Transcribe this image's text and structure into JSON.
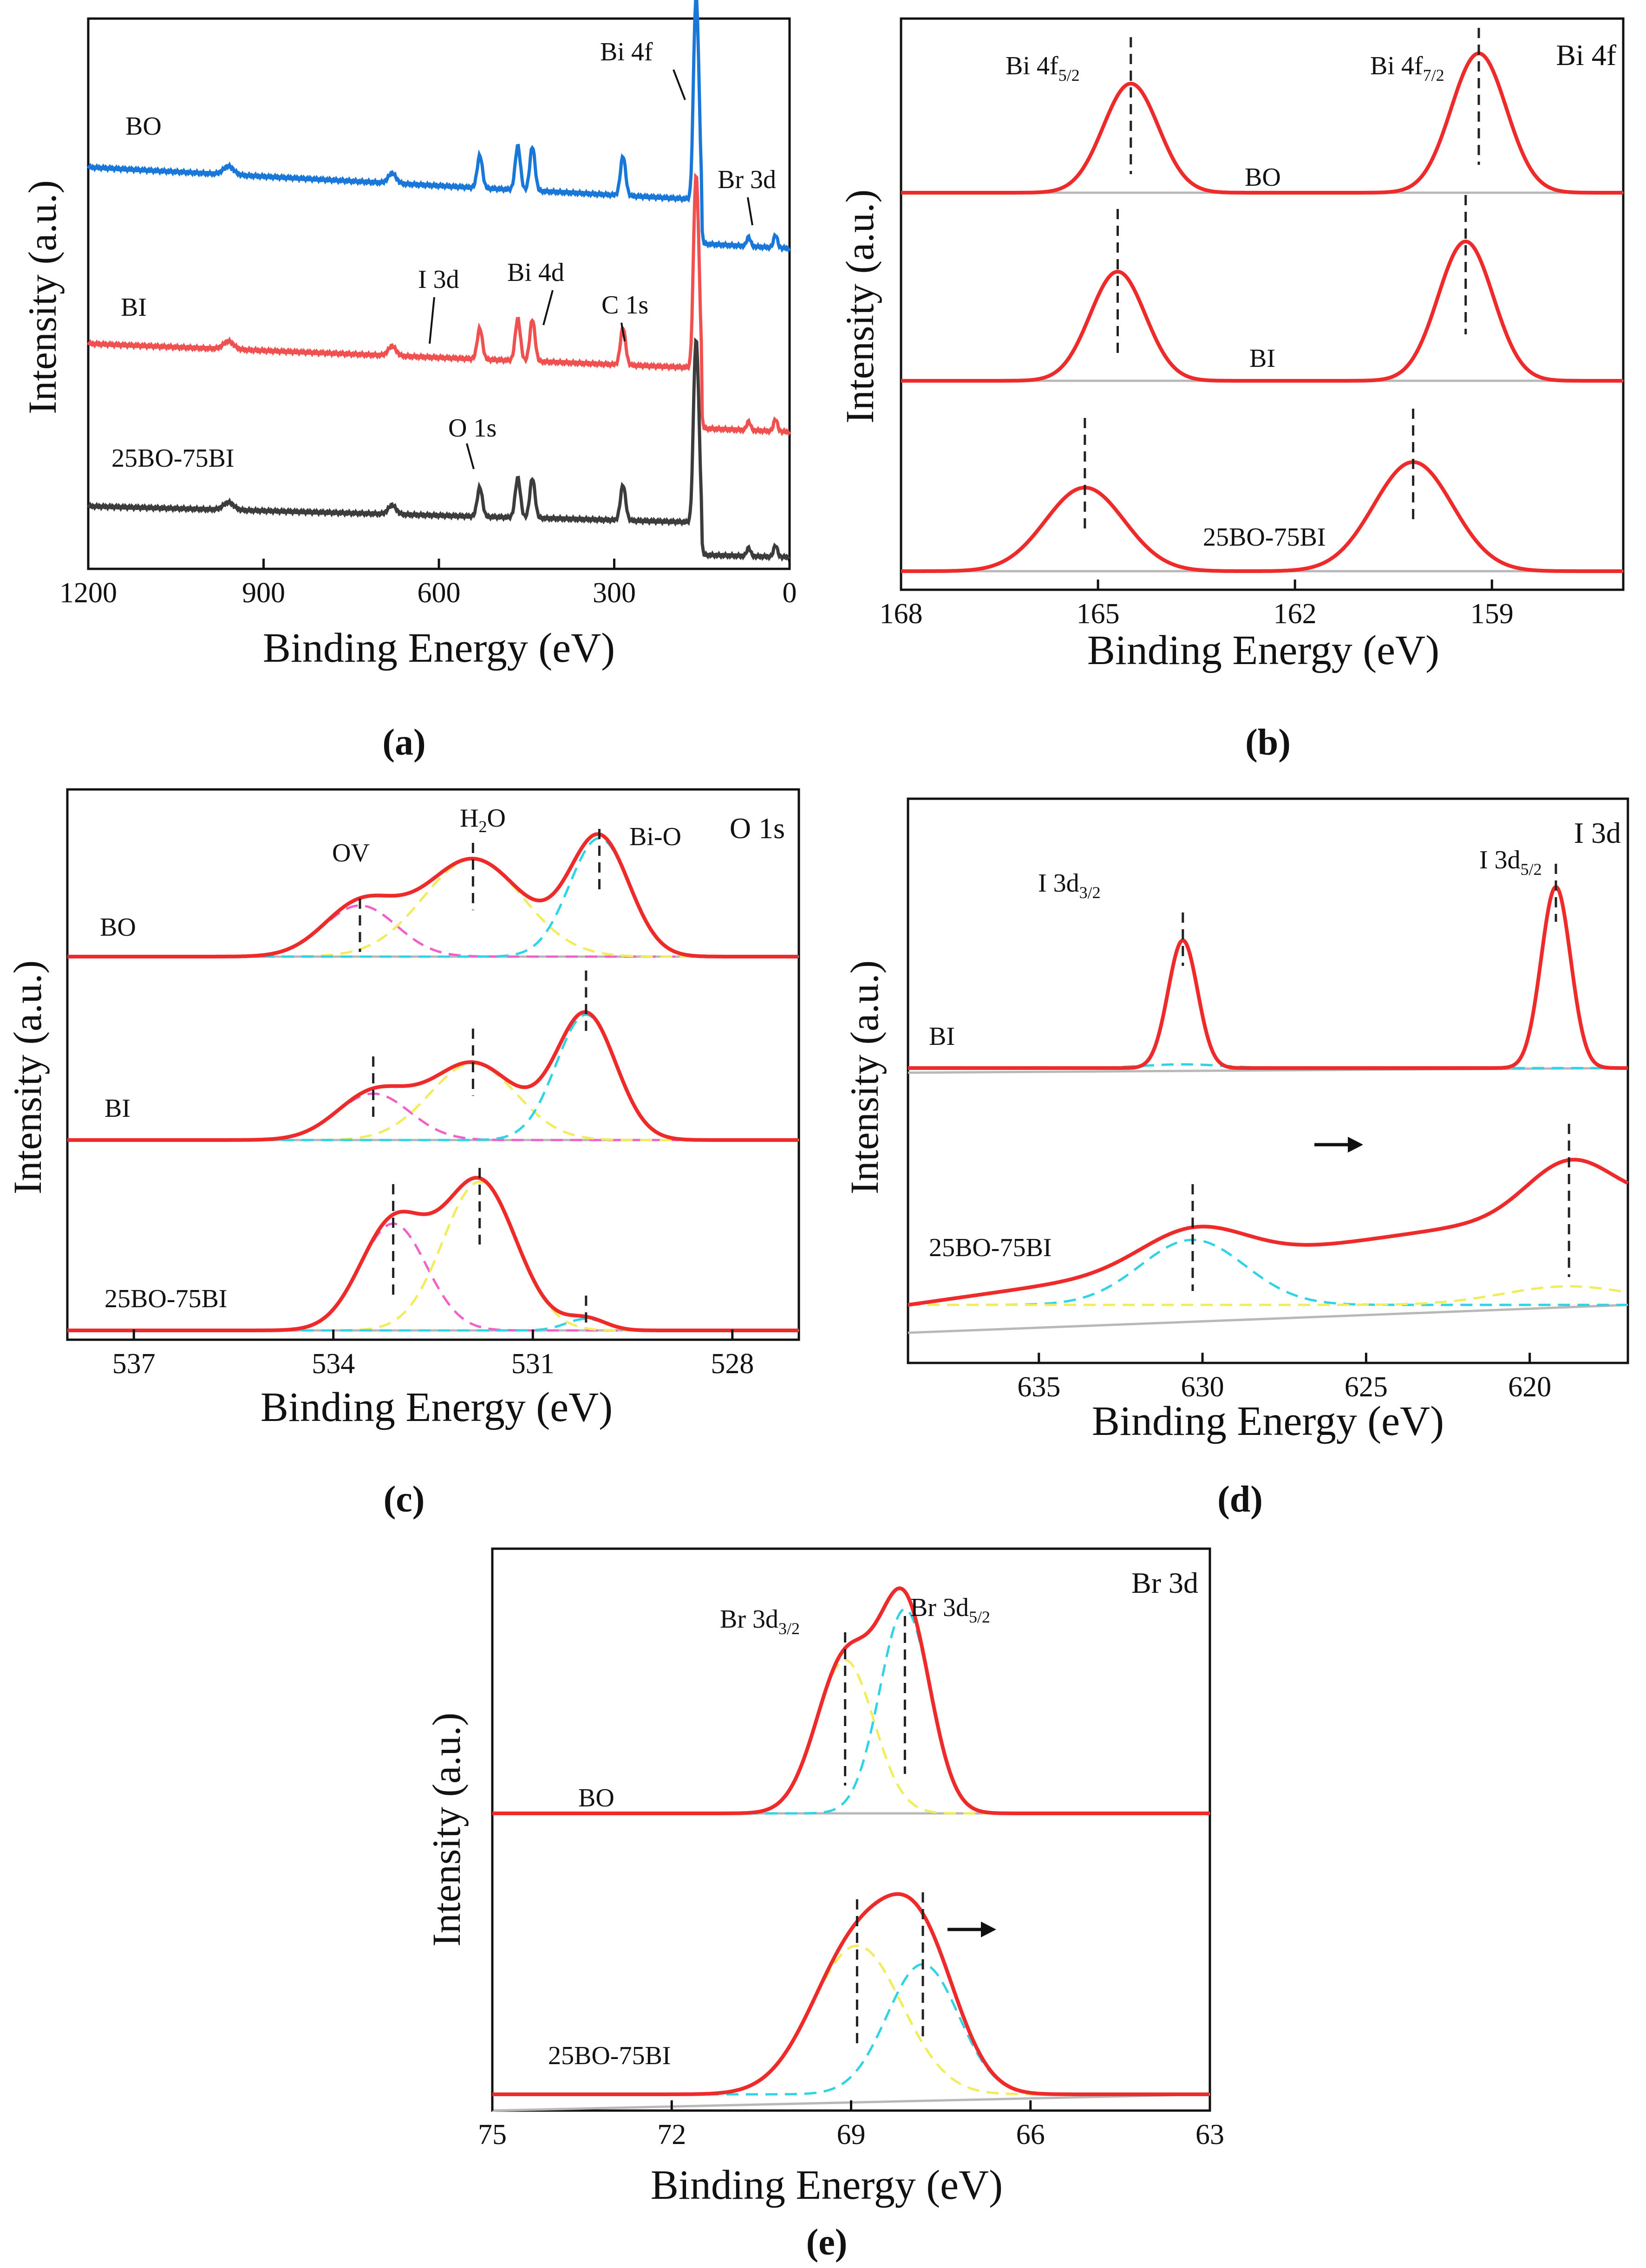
{
  "colors": {
    "blue": "#1877d8",
    "red": "#ee2a2a",
    "salmon": "#f05050",
    "dark": "#3c3c3c",
    "baseline": "#b8b8b8",
    "cyan": "#2ed3e6",
    "yellow": "#f0ec5a",
    "magenta": "#f060c8"
  },
  "chart_data": [
    {
      "id": "a",
      "caption": "(a)",
      "type": "line",
      "xlabel": "Binding Energy (eV)",
      "ylabel": "Intensity (a.u.)",
      "xlim": [
        1200,
        0
      ],
      "xticks": [
        1200,
        900,
        600,
        300,
        0
      ],
      "series": [
        {
          "name": "BO",
          "color": "blue"
        },
        {
          "name": "BI",
          "color": "salmon"
        },
        {
          "name": "25BO-75BI",
          "color": "dark"
        }
      ],
      "annotations": [
        "Bi 4f",
        "Br 3d",
        "I 3d",
        "Bi 4d",
        "C 1s",
        "O 1s"
      ]
    },
    {
      "id": "b",
      "caption": "(b)",
      "type": "line",
      "title": "Bi 4f",
      "xlabel": "Binding Energy (eV)",
      "ylabel": "Intensity (a.u.)",
      "xlim": [
        168,
        157
      ],
      "xticks": [
        168,
        165,
        162,
        159
      ],
      "series": [
        {
          "name": "BO",
          "peaks": [
            164.5,
            159.2
          ]
        },
        {
          "name": "BI",
          "peaks": [
            164.7,
            159.4
          ]
        },
        {
          "name": "25BO-75BI",
          "peaks": [
            165.2,
            160.2
          ]
        }
      ],
      "peak_labels": [
        "Bi 4f",
        "5/2",
        "Bi 4f",
        "7/2"
      ]
    },
    {
      "id": "c",
      "caption": "(c)",
      "type": "line",
      "title": "O 1s",
      "xlabel": "Binding Energy (eV)",
      "ylabel": "Intensity (a.u.)",
      "xlim": [
        538,
        527
      ],
      "xticks": [
        537,
        534,
        531,
        528
      ],
      "series": [
        {
          "name": "BO",
          "peaks": [
            533.6,
            531.9,
            530.0
          ]
        },
        {
          "name": "BI",
          "peaks": [
            533.4,
            531.9,
            530.2
          ]
        },
        {
          "name": "25BO-75BI",
          "peaks": [
            533.1,
            531.8,
            530.2
          ]
        }
      ],
      "peak_labels": [
        "OV",
        "H",
        "2",
        "O",
        "Bi-O"
      ]
    },
    {
      "id": "d",
      "caption": "(d)",
      "type": "line",
      "title": "I 3d",
      "xlabel": "Binding Energy (eV)",
      "ylabel": "Intensity (a.u.)",
      "xlim": [
        639,
        617
      ],
      "xticks": [
        635,
        630,
        625,
        620
      ],
      "series": [
        {
          "name": "BI",
          "peaks": [
            630.6,
            619.2
          ]
        },
        {
          "name": "25BO-75BI",
          "peaks": [
            630.3,
            618.8
          ]
        }
      ],
      "peak_labels": [
        "I 3d",
        "3/2",
        "I 3d",
        "5/2"
      ]
    },
    {
      "id": "e",
      "caption": "(e)",
      "type": "line",
      "title": "Br 3d",
      "xlabel": "Binding Energy (eV)",
      "ylabel": "Intensity (a.u.)",
      "xlim": [
        75,
        63
      ],
      "xticks": [
        75,
        72,
        69,
        66,
        63
      ],
      "series": [
        {
          "name": "BO",
          "peaks": [
            69.1,
            68.1
          ]
        },
        {
          "name": "25BO-75BI",
          "peaks": [
            68.9,
            67.8
          ]
        }
      ],
      "peak_labels": [
        "Br 3d",
        "3/2",
        "Br 3d",
        "5/2"
      ]
    }
  ]
}
